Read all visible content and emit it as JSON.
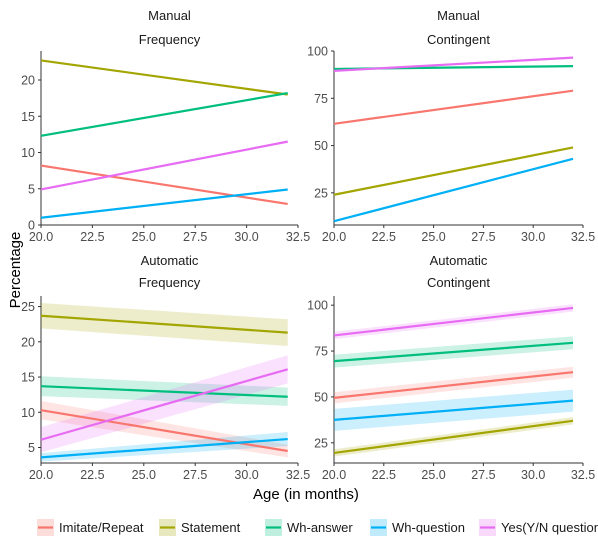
{
  "chart_data": {
    "type": "line",
    "xlabel": "Age (in months)",
    "ylabel": "Percentage",
    "legend": {
      "position": "bottom",
      "entries": [
        "Imitate/Repeat",
        "Statement",
        "Wh-answer",
        "Wh-question",
        "Yes(Y/N question)"
      ]
    },
    "colors": {
      "Imitate/Repeat": "#F8766D",
      "Statement": "#A3A500",
      "Wh-answer": "#00BF7D",
      "Wh-question": "#00B0F6",
      "Yes(Y/N question)": "#E76BF3"
    },
    "x_ticks": [
      "20.0",
      "22.5",
      "25.0",
      "27.5",
      "30.0",
      "32.5"
    ],
    "xlim": [
      20,
      32.5
    ],
    "grid": false,
    "panels": [
      {
        "strip": [
          "Manual",
          "Frequency"
        ],
        "ylim": [
          0,
          24
        ],
        "y_ticks": [
          0,
          5,
          10,
          15,
          20
        ],
        "series": [
          {
            "name": "Imitate/Repeat",
            "x": [
              20,
              32
            ],
            "y": [
              8.2,
              2.9
            ]
          },
          {
            "name": "Statement",
            "x": [
              20,
              32
            ],
            "y": [
              22.7,
              18.0
            ]
          },
          {
            "name": "Wh-answer",
            "x": [
              20,
              32
            ],
            "y": [
              12.3,
              18.2
            ]
          },
          {
            "name": "Wh-question",
            "x": [
              20,
              32
            ],
            "y": [
              1.0,
              4.9
            ]
          },
          {
            "name": "Yes(Y/N question)",
            "x": [
              20,
              32
            ],
            "y": [
              4.9,
              11.5
            ]
          }
        ]
      },
      {
        "strip": [
          "Manual",
          "Contingent"
        ],
        "ylim": [
          8,
          100
        ],
        "y_ticks": [
          25,
          50,
          75,
          100
        ],
        "series": [
          {
            "name": "Imitate/Repeat",
            "x": [
              20,
              32
            ],
            "y": [
              61.5,
              79.0
            ]
          },
          {
            "name": "Statement",
            "x": [
              20,
              32
            ],
            "y": [
              24.0,
              49.0
            ]
          },
          {
            "name": "Wh-answer",
            "x": [
              20,
              32
            ],
            "y": [
              90.5,
              92.0
            ]
          },
          {
            "name": "Wh-question",
            "x": [
              20,
              32
            ],
            "y": [
              10.0,
              43.0
            ]
          },
          {
            "name": "Yes(Y/N question)",
            "x": [
              20,
              32
            ],
            "y": [
              89.5,
              96.5
            ]
          }
        ]
      },
      {
        "strip": [
          "Automatic",
          "Frequency"
        ],
        "ylim": [
          2.8,
          26.5
        ],
        "y_ticks": [
          5,
          10,
          15,
          20,
          25
        ],
        "series": [
          {
            "name": "Imitate/Repeat",
            "x": [
              20,
              32
            ],
            "y": [
              10.3,
              4.5
            ],
            "ci": [
              1.3,
              0.9
            ]
          },
          {
            "name": "Statement",
            "x": [
              20,
              32
            ],
            "y": [
              23.7,
              21.3
            ],
            "ci": [
              1.8,
              1.9
            ]
          },
          {
            "name": "Wh-answer",
            "x": [
              20,
              32
            ],
            "y": [
              13.7,
              12.2
            ],
            "ci": [
              1.4,
              1.3
            ]
          },
          {
            "name": "Wh-question",
            "x": [
              20,
              32
            ],
            "y": [
              3.6,
              6.2
            ],
            "ci": [
              0.6,
              1.0
            ]
          },
          {
            "name": "Yes(Y/N question)",
            "x": [
              20,
              32
            ],
            "y": [
              6.1,
              16.1
            ],
            "ci": [
              1.8,
              2.0
            ]
          }
        ]
      },
      {
        "strip": [
          "Automatic",
          "Contingent"
        ],
        "ylim": [
          14,
          105
        ],
        "y_ticks": [
          25,
          50,
          75,
          100
        ],
        "series": [
          {
            "name": "Imitate/Repeat",
            "x": [
              20,
              32
            ],
            "y": [
              49.5,
              63.5
            ],
            "ci": [
              3.0,
              3.0
            ]
          },
          {
            "name": "Statement",
            "x": [
              20,
              32
            ],
            "y": [
              19.5,
              37.0
            ],
            "ci": [
              2.0,
              2.0
            ]
          },
          {
            "name": "Wh-answer",
            "x": [
              20,
              32
            ],
            "y": [
              69.5,
              79.5
            ],
            "ci": [
              3.5,
              3.5
            ]
          },
          {
            "name": "Wh-question",
            "x": [
              20,
              32
            ],
            "y": [
              37.5,
              48.0
            ],
            "ci": [
              6.0,
              6.0
            ]
          },
          {
            "name": "Yes(Y/N question)",
            "x": [
              20,
              32
            ],
            "y": [
              83.5,
              98.5
            ],
            "ci": [
              2.0,
              2.0
            ]
          }
        ]
      }
    ]
  }
}
